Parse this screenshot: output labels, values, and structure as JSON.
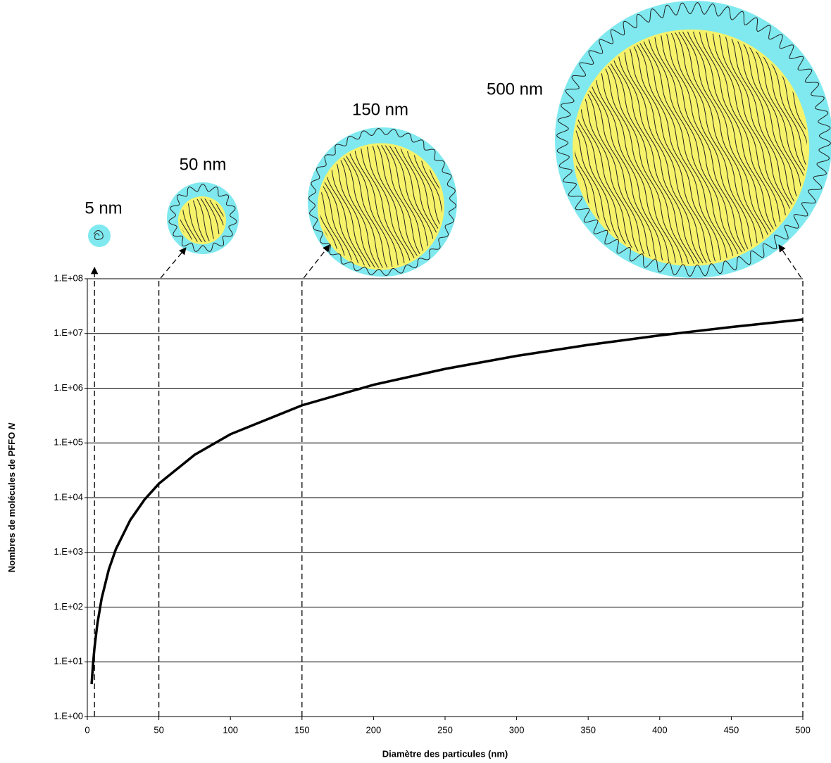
{
  "chart_data": {
    "type": "line",
    "xlabel": "Diamètre des particules (nm)",
    "ylabel": "Nombres de molécules de PFFO",
    "ylabel_symbol": "N",
    "x": [
      3,
      4,
      5,
      7,
      10,
      15,
      20,
      30,
      40,
      50,
      75,
      100,
      150,
      200,
      250,
      300,
      350,
      400,
      450,
      500
    ],
    "values": [
      3.9,
      9.2,
      18,
      49,
      144,
      486,
      1152,
      3888,
      9216,
      18000,
      60750,
      144000,
      486000,
      1152000,
      2250000,
      3888000,
      6174000,
      9216000,
      13122000,
      18000000
    ],
    "color": "#000000",
    "xlim": [
      0,
      500
    ],
    "xticks": [
      0,
      50,
      100,
      150,
      200,
      250,
      300,
      350,
      400,
      450,
      500
    ],
    "ylim": [
      1,
      100000000
    ],
    "yscale": "log",
    "yticks": [
      {
        "value": 1,
        "label": "1.E+00"
      },
      {
        "value": 10,
        "label": "1.E+01"
      },
      {
        "value": 100,
        "label": "1.E+02"
      },
      {
        "value": 1000,
        "label": "1.E+03"
      },
      {
        "value": 10000,
        "label": "1.E+04"
      },
      {
        "value": 100000,
        "label": "1.E+05"
      },
      {
        "value": 1000000,
        "label": "1.E+06"
      },
      {
        "value": 10000000,
        "label": "1.E+07"
      },
      {
        "value": 100000000,
        "label": "1.E+08"
      }
    ],
    "grid": true,
    "annotations": [
      {
        "x": 5,
        "label": "5 nm"
      },
      {
        "x": 50,
        "label": "50 nm"
      },
      {
        "x": 150,
        "label": "150 nm"
      },
      {
        "x": 500,
        "label": "500 nm"
      }
    ]
  }
}
